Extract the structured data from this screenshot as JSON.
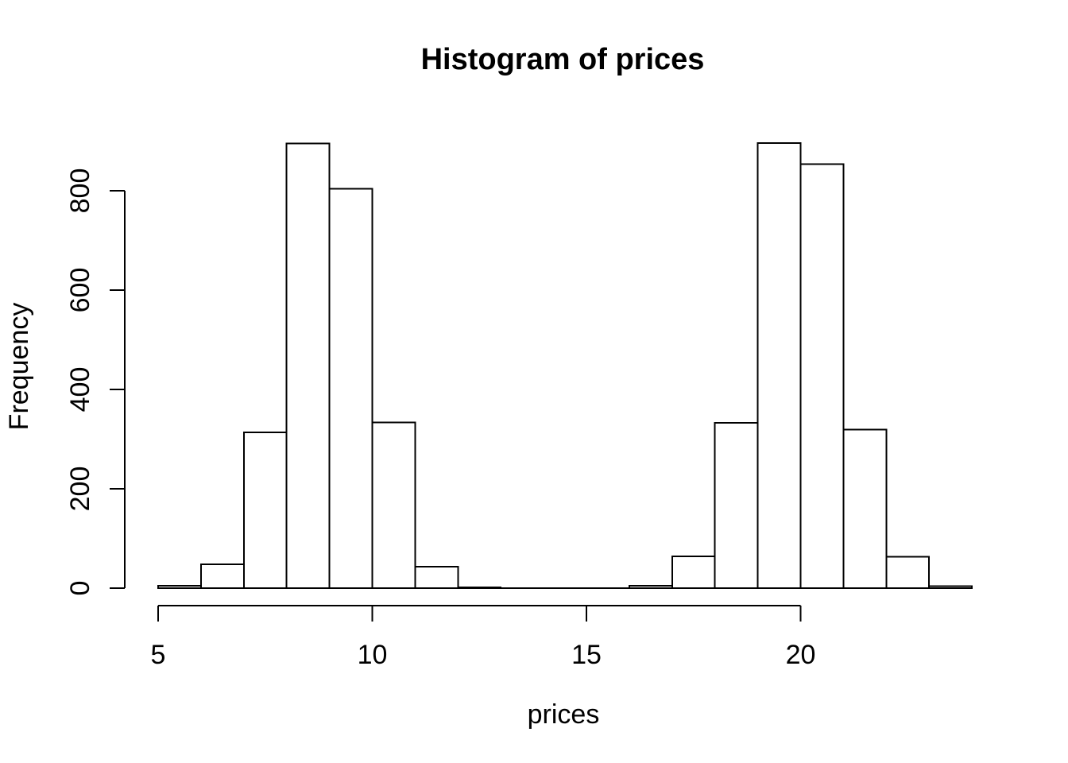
{
  "chart_data": {
    "type": "bar",
    "subtype": "histogram",
    "title": "Histogram of prices",
    "xlabel": "prices",
    "ylabel": "Frequency",
    "bin_edges": [
      5,
      6,
      7,
      8,
      9,
      10,
      11,
      12,
      13,
      14,
      15,
      16,
      17,
      18,
      19,
      20,
      21,
      22,
      23,
      24
    ],
    "counts": [
      5,
      48,
      314,
      895,
      804,
      334,
      43,
      2,
      0,
      0,
      0,
      5,
      64,
      333,
      896,
      854,
      319,
      63,
      4
    ],
    "x_ticks": [
      5,
      10,
      15,
      20
    ],
    "y_ticks": [
      0,
      200,
      400,
      600,
      800
    ],
    "xlim": [
      5,
      24
    ],
    "ylim": [
      0,
      800
    ],
    "grid": false,
    "legend": false,
    "bar_fill": "#ffffff",
    "bar_stroke": "#000000",
    "axis_color": "#000000",
    "background": "#ffffff"
  }
}
